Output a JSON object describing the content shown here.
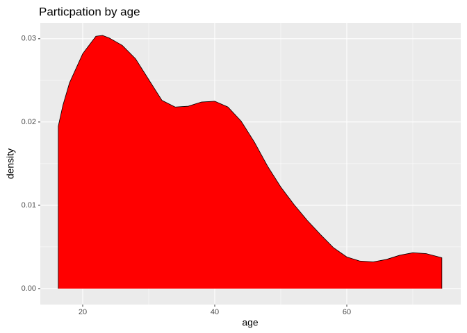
{
  "chart_data": {
    "type": "area",
    "title": "Particpation by age",
    "x_label": "age",
    "y_label": "density",
    "x": [
      16.3,
      17,
      18,
      20,
      22,
      23,
      24,
      26,
      28,
      30,
      32,
      34,
      36,
      38,
      40,
      42,
      44,
      46,
      48,
      50,
      52,
      54,
      56,
      58,
      60,
      62,
      64,
      66,
      68,
      70,
      72,
      74.4
    ],
    "values": [
      0.0195,
      0.022,
      0.0247,
      0.0282,
      0.0303,
      0.0304,
      0.0301,
      0.0292,
      0.0276,
      0.0251,
      0.0226,
      0.0218,
      0.0219,
      0.0224,
      0.0225,
      0.0218,
      0.0201,
      0.0176,
      0.0147,
      0.0122,
      0.0101,
      0.0082,
      0.0065,
      0.0049,
      0.0038,
      0.0033,
      0.0032,
      0.0035,
      0.004,
      0.0043,
      0.0042,
      0.0037
    ],
    "color": "#ff0000",
    "outline": "#000000",
    "xlim": [
      13.58,
      77.26
    ],
    "ylim": [
      -0.00192,
      0.0319
    ],
    "xticks": [
      20,
      40,
      60
    ],
    "xminor": [
      30,
      50,
      70
    ],
    "yticks": [
      {
        "value": 0,
        "label": "0.00"
      },
      0.01,
      0.02,
      0.03
    ],
    "yminor": [
      0.005,
      0.015,
      0.025
    ],
    "grid": true
  }
}
